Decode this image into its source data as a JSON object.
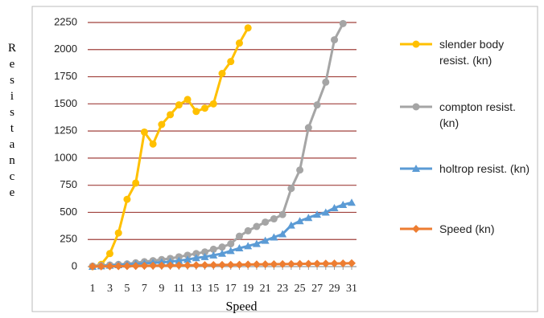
{
  "chart_data": {
    "type": "line",
    "y_label": "Resistance",
    "x_label": "Speed",
    "categories": [
      1,
      null,
      3,
      null,
      5,
      null,
      7,
      null,
      9,
      null,
      11,
      null,
      13,
      null,
      15,
      null,
      17,
      null,
      19,
      null,
      21,
      null,
      23,
      null,
      25,
      null,
      27,
      null,
      29,
      null,
      31
    ],
    "ylim": [
      0,
      2250
    ],
    "yticks": [
      0,
      250,
      500,
      750,
      1000,
      1250,
      1500,
      1750,
      2000,
      2250
    ],
    "grid": true,
    "series": [
      {
        "name": "slender body resist. (kn)",
        "color": "#ffc000",
        "marker": "circle",
        "values": [
          0,
          20,
          120,
          310,
          620,
          770,
          1240,
          1130,
          1310,
          1400,
          1490,
          1540,
          1430,
          1460,
          1500,
          1780,
          1890,
          2060,
          2200,
          null,
          null,
          null,
          null,
          null,
          null,
          null,
          null,
          null,
          null,
          null,
          null
        ]
      },
      {
        "name": "compton resist. (kn)",
        "color": "#a5a5a5",
        "marker": "circle",
        "values": [
          5,
          10,
          15,
          20,
          25,
          35,
          45,
          55,
          65,
          75,
          90,
          105,
          120,
          135,
          160,
          180,
          210,
          280,
          330,
          370,
          410,
          440,
          480,
          720,
          890,
          1280,
          1490,
          1700,
          2090,
          2240,
          null
        ]
      },
      {
        "name": "holtrop resist. (kn)",
        "color": "#5b9bd5",
        "marker": "triangle",
        "values": [
          0,
          5,
          10,
          15,
          20,
          25,
          30,
          35,
          40,
          45,
          55,
          65,
          80,
          90,
          105,
          120,
          145,
          170,
          190,
          210,
          240,
          270,
          300,
          380,
          420,
          450,
          480,
          500,
          540,
          570,
          590
        ]
      },
      {
        "name": "Speed (kn)",
        "color": "#ed7d31",
        "marker": "diamond",
        "values": [
          1,
          2,
          3,
          4,
          5,
          6,
          7,
          8,
          9,
          10,
          11,
          12,
          13,
          14,
          15,
          16,
          17,
          18,
          19,
          20,
          21,
          22,
          23,
          24,
          25,
          26,
          27,
          28,
          29,
          30,
          31
        ]
      }
    ]
  }
}
